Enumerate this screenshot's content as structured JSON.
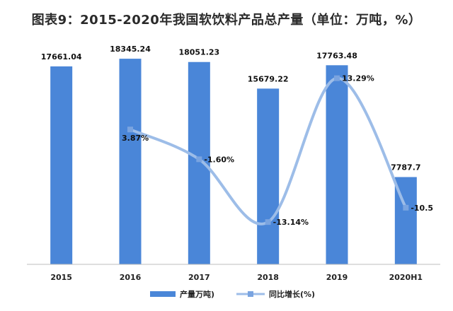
{
  "chart_data": {
    "type": "bar",
    "title": "图表9：2015-2020年我国软饮料产品总产量（单位：万吨，%）",
    "categories": [
      "2015",
      "2016",
      "2017",
      "2018",
      "2019",
      "2020H1"
    ],
    "series": [
      {
        "name": "产量万吨)",
        "type": "bar",
        "values": [
          17661.04,
          18345.24,
          18051.23,
          15679.22,
          17763.48,
          7787.7
        ],
        "labels": [
          "17661.04",
          "18345.24",
          "18051.23",
          "15679.22",
          "17763.48",
          "7787.7"
        ],
        "color": "#4a86d8"
      },
      {
        "name": "同比增长(%)",
        "type": "line",
        "values": [
          null,
          3.87,
          -1.6,
          -13.14,
          13.29,
          -10.5
        ],
        "labels": [
          "",
          "3.87%",
          "-1.60%",
          "-13.14%",
          "13.29%",
          "-10.5"
        ],
        "color": "#9dbde8"
      }
    ],
    "grid": false,
    "legend": "bottom-center"
  }
}
